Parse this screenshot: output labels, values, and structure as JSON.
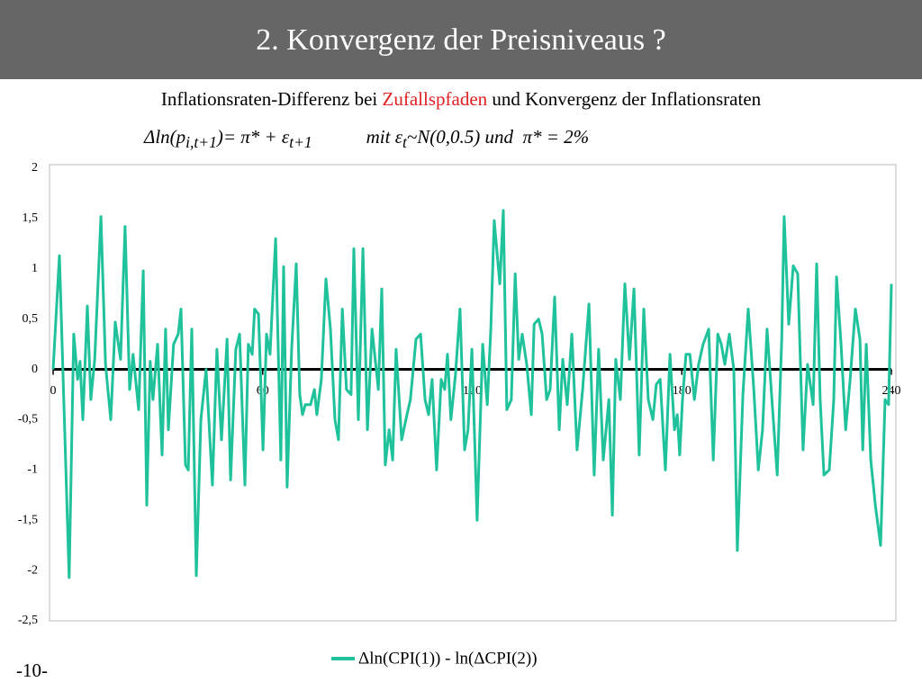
{
  "header": {
    "title": "2. Konvergenz der Preisniveaus ?"
  },
  "subtitle": {
    "before": "Inflationsraten-Differenz bei ",
    "highlight": "Zufallspfaden",
    "after": " und Konvergenz der Inflationsraten"
  },
  "formula": {
    "left": "Δln(p",
    "left_sub": "i,t+1",
    "middle": ")= π* + ε",
    "middle_sub": "t+1",
    "cond_start": "mit ε",
    "cond_sub": "t",
    "cond_end": "~N(0,0.5) und  π* = 2%"
  },
  "page_number": "-10-",
  "chart_data": {
    "type": "line",
    "xlim": [
      0,
      240
    ],
    "xticks": [
      0,
      60,
      120,
      180,
      240
    ],
    "ylim": [
      -2.5,
      2
    ],
    "yticks": [
      {
        "value": -2.5,
        "label": "-2,5"
      },
      -2,
      {
        "value": -1.5,
        "label": "-1,5"
      },
      -1,
      {
        "value": -0.5,
        "label": "-0,5"
      },
      0,
      {
        "value": 0.5,
        "label": "0,5"
      },
      1,
      {
        "value": 1.5,
        "label": "1,5"
      },
      2
    ],
    "grid": false,
    "legend": "bottom",
    "x": [
      0,
      1.8,
      4.6,
      5.9,
      7.0,
      7.7,
      8.5,
      9.8,
      10.8,
      11.9,
      13.7,
      15.0,
      16.5,
      17.8,
      19.3,
      20.6,
      21.9,
      22.9,
      24.5,
      25.8,
      26.8,
      27.8,
      28.6,
      29.9,
      31.2,
      32.2,
      33.0,
      34.5,
      35.8,
      36.6,
      37.9,
      38.7,
      39.7,
      41.0,
      42.3,
      43.8,
      45.6,
      46.9,
      48.2,
      49.8,
      50.8,
      52.3,
      53.4,
      54.9,
      55.9,
      57.0,
      57.7,
      58.8,
      60.1,
      61.1,
      62.1,
      63.7,
      65.2,
      66.0,
      67.0,
      68.3,
      69.6,
      70.6,
      71.4,
      72.2,
      73.0,
      73.7,
      74.8,
      75.5,
      76.8,
      78.1,
      79.4,
      80.7,
      81.7,
      82.8,
      84.0,
      85.3,
      86.1,
      87.4,
      88.7,
      90.0,
      91.3,
      93.1,
      94.1,
      95.1,
      96.2,
      97.2,
      98.2,
      99.8,
      101.3,
      102.3,
      103.9,
      105.2,
      106.5,
      107.5,
      108.5,
      109.8,
      111.1,
      112.1,
      112.9,
      113.9,
      115.2,
      116.5,
      117.8,
      118.8,
      119.9,
      121.4,
      123.0,
      124.3,
      125.3,
      126.3,
      127.9,
      128.9,
      129.9,
      131.2,
      132.3,
      133.3,
      134.3,
      135.6,
      136.9,
      137.7,
      139.0,
      140.0,
      141.3,
      142.3,
      143.6,
      144.9,
      145.9,
      147.2,
      148.5,
      150.0,
      151.6,
      153.4,
      154.9,
      156.2,
      157.5,
      159.1,
      160.1,
      161.1,
      162.4,
      163.7,
      165.0,
      166.3,
      167.8,
      169.1,
      170.4,
      171.7,
      172.7,
      173.8,
      175.3,
      176.6,
      177.9,
      178.7,
      179.4,
      180.2,
      181.2,
      182.3,
      183.6,
      184.8,
      186.1,
      187.7,
      189.0,
      190.3,
      191.3,
      192.3,
      193.6,
      194.9,
      195.9,
      197.5,
      199.0,
      200.6,
      201.9,
      203.1,
      204.4,
      206.0,
      207.3,
      208.6,
      209.3,
      210.6,
      211.9,
      213.2,
      214.7,
      216.0,
      217.6,
      218.6,
      219.6,
      220.7,
      222.2,
      223.5,
      224.3,
      225.6,
      226.9,
      228.2,
      229.7,
      231.0,
      231.8,
      232.8,
      234.1,
      235.4,
      236.9,
      238.2,
      239.2,
      240.0
    ],
    "series": [
      {
        "name": "Δln(CPI(1)) - ln(ΔCPI(2))",
        "color": "#20c29c",
        "values": [
          0,
          1.13,
          -2.07,
          0.35,
          -0.1,
          0.08,
          -0.5,
          0.63,
          -0.3,
          0.1,
          1.52,
          0.05,
          -0.5,
          0.47,
          0.1,
          1.42,
          -0.2,
          0.15,
          -0.4,
          0.98,
          -1.35,
          0.08,
          -0.3,
          0.25,
          -0.85,
          0.4,
          -0.6,
          0.25,
          0.35,
          0.6,
          -0.95,
          -1.0,
          0.4,
          -2.05,
          -0.5,
          0,
          -1.15,
          0.2,
          -0.7,
          0.3,
          -1.1,
          0.2,
          0.35,
          -1.15,
          0.25,
          0.15,
          0.6,
          0.55,
          -0.8,
          0.35,
          0.15,
          1.3,
          -0.9,
          1.02,
          -1.17,
          0.2,
          1.05,
          -0.25,
          -0.45,
          -0.35,
          -0.35,
          -0.35,
          -0.2,
          -0.45,
          -0.1,
          0.9,
          0.4,
          -0.5,
          -0.7,
          0.6,
          -0.2,
          -0.25,
          1.2,
          -0.5,
          1.2,
          -0.6,
          0.4,
          -0.2,
          0.8,
          -0.95,
          -0.6,
          -0.9,
          0.2,
          -0.7,
          -0.45,
          -0.3,
          0.3,
          0.35,
          -0.3,
          -0.45,
          -0.1,
          -1.0,
          -0.1,
          -0.2,
          0.15,
          -0.5,
          -0.05,
          0.6,
          -0.8,
          -0.6,
          0.2,
          -1.5,
          0.25,
          -0.35,
          0.4,
          1.48,
          0.85,
          1.58,
          -0.4,
          -0.3,
          0.95,
          0.1,
          0.35,
          0.05,
          -0.45,
          0.45,
          0.5,
          0.35,
          -0.3,
          -0.2,
          0.72,
          -0.6,
          0.1,
          -0.35,
          0.35,
          -0.8,
          -0.2,
          0.65,
          -1.05,
          0.2,
          -0.9,
          -0.3,
          -1.45,
          0.1,
          -0.3,
          0.85,
          0.1,
          0.8,
          -0.85,
          0.6,
          -0.3,
          -0.5,
          -0.15,
          -0.1,
          -1.0,
          0.15,
          -0.6,
          -0.45,
          -0.85,
          -0.3,
          0.15,
          0.15,
          -0.3,
          0.05,
          0.25,
          0.4,
          -0.9,
          0.35,
          0.25,
          0.05,
          0.35,
          0.0,
          -1.8,
          -0.25,
          0.6,
          -0.2,
          -1.0,
          -0.6,
          0.4,
          -0.4,
          -1.05,
          0.3,
          1.52,
          0.45,
          1.03,
          0.95,
          -0.8,
          0.05,
          -0.35,
          1.05,
          -0.3,
          -1.05,
          -1.0,
          -0.3,
          0.92,
          0.25,
          -0.6,
          -0.1,
          0.6,
          0.3,
          -0.8,
          0.25,
          -0.9,
          -1.35,
          -1.75,
          -0.3,
          -0.35,
          0.85
        ]
      }
    ]
  }
}
